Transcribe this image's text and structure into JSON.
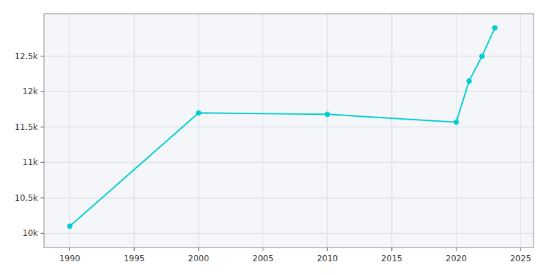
{
  "chart_data": {
    "type": "line",
    "x": [
      1990,
      2000,
      2010,
      2020,
      2021,
      2022,
      2023
    ],
    "values": [
      10100,
      11700,
      11680,
      11570,
      12150,
      12500,
      12900
    ],
    "color": "#00CED1",
    "marker": "circle",
    "xlim": [
      1988,
      2026
    ],
    "ylim": [
      9800,
      13100
    ],
    "xticks": [
      1990,
      1995,
      2000,
      2005,
      2010,
      2015,
      2020,
      2025
    ],
    "yticks": [
      {
        "value": 10000,
        "label": "10k"
      },
      {
        "value": 10500,
        "label": "10.5k"
      },
      {
        "value": 11000,
        "label": "11k"
      },
      {
        "value": 11500,
        "label": "11.5k"
      },
      {
        "value": 12000,
        "label": "12k"
      },
      {
        "value": 12500,
        "label": "12.5k"
      }
    ],
    "grid": true
  }
}
